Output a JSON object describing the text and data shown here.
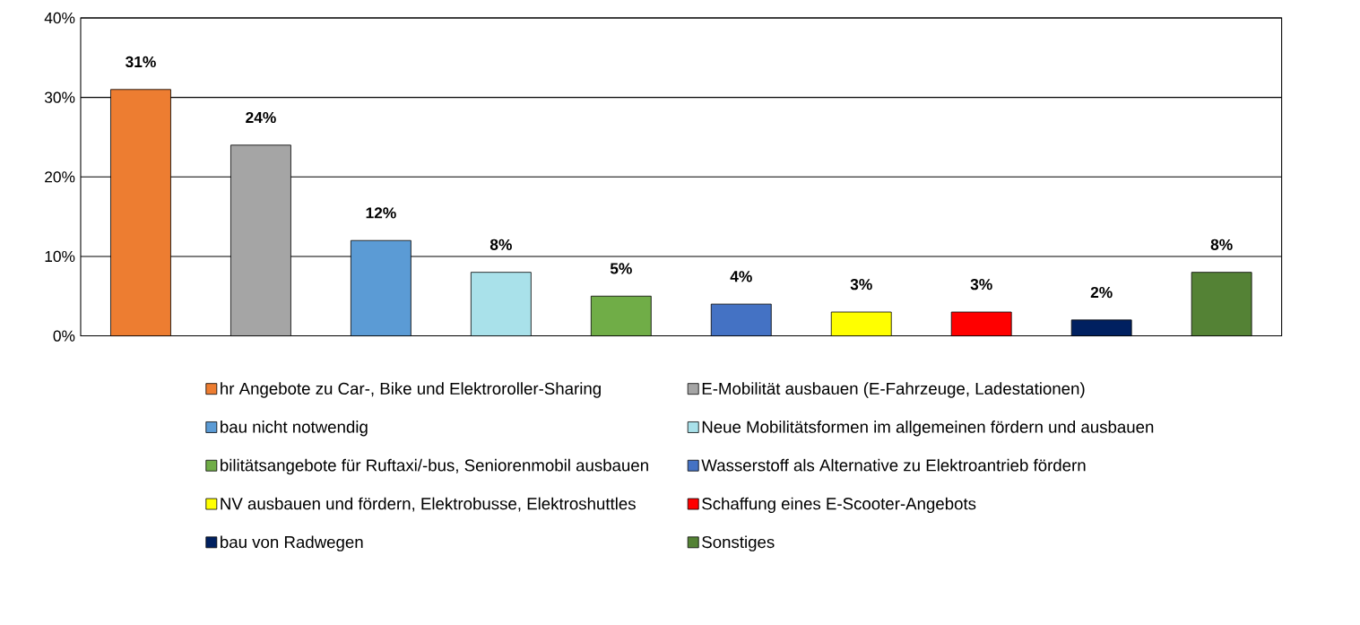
{
  "chart_data": {
    "type": "bar",
    "categories": [
      null,
      null,
      null,
      null,
      null,
      null,
      null,
      null,
      null,
      null
    ],
    "series": [
      {
        "name": "hr Angebote zu Car-, Bike und Elektroroller-Sharing",
        "color": "#ed7d31",
        "values": [
          31,
          null,
          null,
          null,
          null,
          null,
          null,
          null,
          null,
          null
        ],
        "value_labels": [
          "31%",
          null,
          null,
          null,
          null,
          null,
          null,
          null,
          null,
          null
        ]
      },
      {
        "name": "E-Mobilität ausbauen (E-Fahrzeuge, Ladestationen)",
        "color": "#a5a5a5",
        "values": [
          null,
          24,
          null,
          null,
          null,
          null,
          null,
          null,
          null,
          null
        ],
        "value_labels": [
          null,
          "24%",
          null,
          null,
          null,
          null,
          null,
          null,
          null,
          null
        ]
      },
      {
        "name": "bau nicht notwendig",
        "color": "#5b9bd5",
        "values": [
          null,
          null,
          12,
          null,
          null,
          null,
          null,
          null,
          null,
          null
        ],
        "value_labels": [
          null,
          null,
          "12%",
          null,
          null,
          null,
          null,
          null,
          null,
          null
        ]
      },
      {
        "name": "Neue Mobilitätsformen im allgemeinen fördern und ausbauen",
        "color": "#a9e1ea",
        "values": [
          null,
          null,
          null,
          8,
          null,
          null,
          null,
          null,
          null,
          null
        ],
        "value_labels": [
          null,
          null,
          null,
          "8%",
          null,
          null,
          null,
          null,
          null,
          null
        ]
      },
      {
        "name": "bilitätsangebote für Ruftaxi/-bus, Seniorenmobil ausbauen",
        "color": "#70ad47",
        "values": [
          null,
          null,
          null,
          null,
          5,
          null,
          null,
          null,
          null,
          null
        ],
        "value_labels": [
          null,
          null,
          null,
          null,
          "5%",
          null,
          null,
          null,
          null,
          null
        ]
      },
      {
        "name": "Wasserstoff als Alternative zu Elektroantrieb fördern",
        "color": "#4472c4",
        "values": [
          null,
          null,
          null,
          null,
          null,
          4,
          null,
          null,
          null,
          null
        ],
        "value_labels": [
          null,
          null,
          null,
          null,
          null,
          "4%",
          null,
          null,
          null,
          null
        ]
      },
      {
        "name": "NV ausbauen und fördern, Elektrobusse, Elektroshuttles",
        "color": "#ffff00",
        "values": [
          null,
          null,
          null,
          null,
          null,
          null,
          3,
          null,
          null,
          null
        ],
        "value_labels": [
          null,
          null,
          null,
          null,
          null,
          null,
          "3%",
          null,
          null,
          null
        ]
      },
      {
        "name": "Schaffung eines E-Scooter-Angebots",
        "color": "#ff0000",
        "values": [
          null,
          null,
          null,
          null,
          null,
          null,
          null,
          3,
          null,
          null
        ],
        "value_labels": [
          null,
          null,
          null,
          null,
          null,
          null,
          null,
          "3%",
          null,
          null
        ]
      },
      {
        "name": "bau von Radwegen",
        "color": "#002060",
        "values": [
          null,
          null,
          null,
          null,
          null,
          null,
          null,
          null,
          2,
          null
        ],
        "value_labels": [
          null,
          null,
          null,
          null,
          null,
          null,
          null,
          null,
          "2%",
          null
        ]
      },
      {
        "name": "Sonstiges",
        "color": "#548235",
        "values": [
          null,
          null,
          null,
          null,
          null,
          null,
          null,
          null,
          null,
          8
        ],
        "value_labels": [
          null,
          null,
          null,
          null,
          null,
          null,
          null,
          null,
          null,
          "8%"
        ]
      }
    ],
    "ylim": [
      0,
      40
    ],
    "yticks": [
      {
        "value": 0,
        "label": "0%"
      },
      {
        "value": 10,
        "label": "10%"
      },
      {
        "value": 20,
        "label": "20%"
      },
      {
        "value": 30,
        "label": "30%"
      },
      {
        "value": 40,
        "label": "40%"
      }
    ],
    "grid": "y",
    "legend": "bottom"
  }
}
